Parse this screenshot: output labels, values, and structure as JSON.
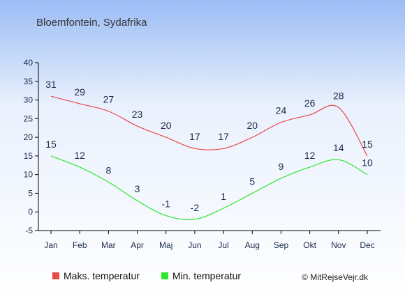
{
  "chart_data": {
    "type": "line",
    "title": "Bloemfontein, Sydafrika",
    "categories": [
      "Jan",
      "Feb",
      "Mar",
      "Apr",
      "Maj",
      "Jun",
      "Jul",
      "Aug",
      "Sep",
      "Okt",
      "Nov",
      "Dec"
    ],
    "series": [
      {
        "name": "Maks. temperatur",
        "color": "#e84a4a",
        "values": [
          31,
          29,
          27,
          23,
          20,
          17,
          17,
          20,
          24,
          26,
          28,
          15
        ]
      },
      {
        "name": "Min. temperatur",
        "color": "#2ee82e",
        "values": [
          15,
          12,
          8,
          3,
          -1,
          -2,
          1,
          5,
          9,
          12,
          14,
          10
        ]
      }
    ],
    "ylim": [
      -5,
      40
    ],
    "yticks": [
      -5,
      0,
      5,
      10,
      15,
      20,
      25,
      30,
      35,
      40
    ],
    "grid": false,
    "legend_position": "bottom-left"
  },
  "copyright": "© MitRejseVejr.dk",
  "colors": {
    "background_top": "#9bbcf5",
    "background_bottom": "#ffffff",
    "axis": "#000000",
    "label": "#1a2a4a"
  }
}
